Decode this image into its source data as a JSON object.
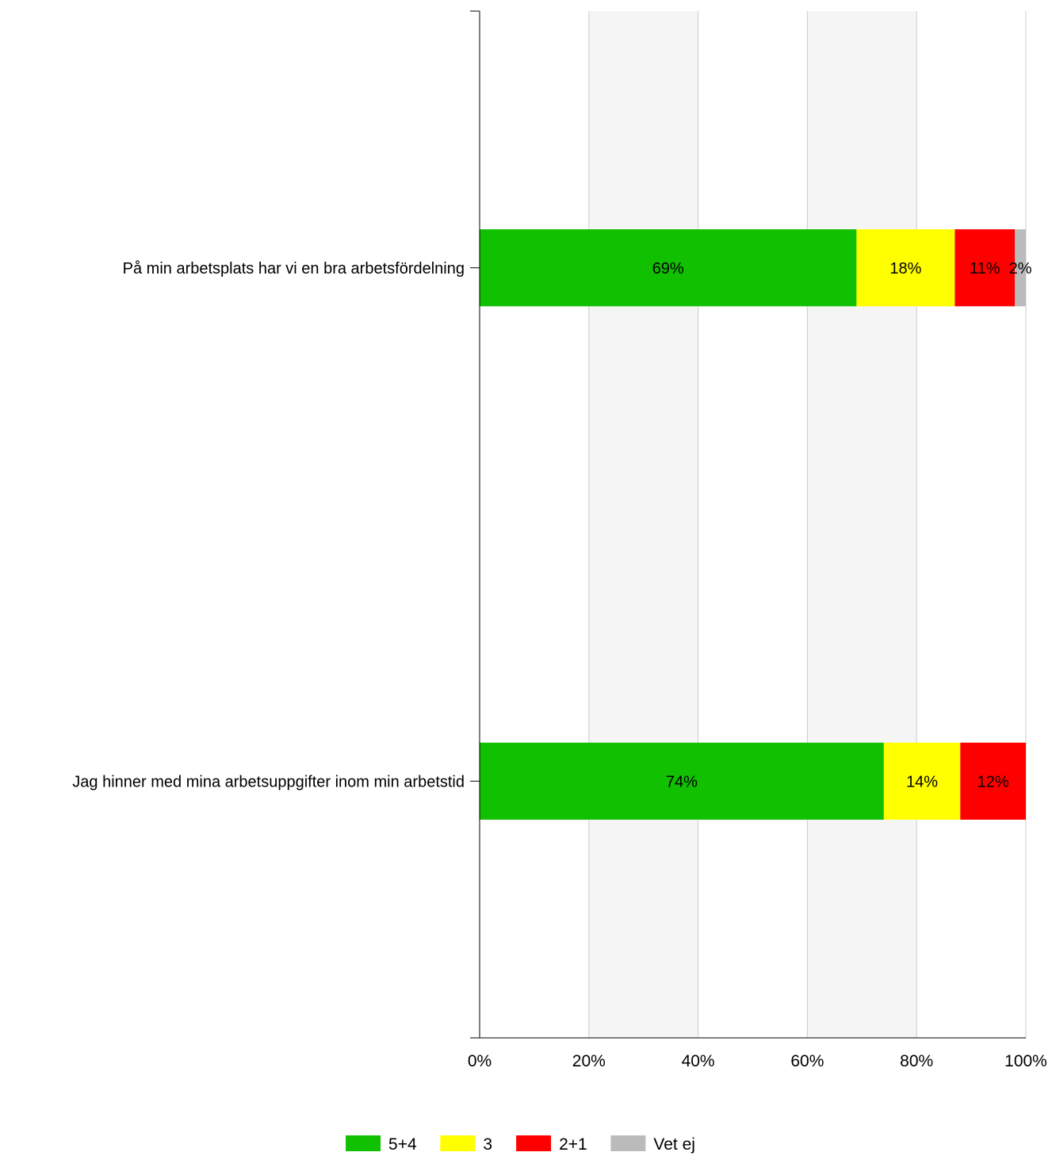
{
  "chart_data": {
    "type": "bar",
    "orientation": "horizontal",
    "stacked": true,
    "categories": [
      "På min arbetsplats har vi en bra arbetsfördelning",
      "Jag hinner med mina arbetsuppgifter inom min arbetstid"
    ],
    "series": [
      {
        "name": "5+4",
        "color": "#11c000",
        "values": [
          69,
          74
        ],
        "labels": [
          "69%",
          "74%"
        ]
      },
      {
        "name": "3",
        "color": "#ffff00",
        "values": [
          18,
          14
        ],
        "labels": [
          "18%",
          "14%"
        ]
      },
      {
        "name": "2+1",
        "color": "#ff0000",
        "values": [
          11,
          12
        ],
        "labels": [
          "11%",
          "12%"
        ]
      },
      {
        "name": "Vet ej",
        "color": "#bbbbbb",
        "values": [
          2,
          0
        ],
        "labels": [
          "2%",
          ""
        ]
      }
    ],
    "xlim": [
      0,
      100
    ],
    "x_ticks": [
      "0%",
      "20%",
      "40%",
      "60%",
      "80%",
      "100%"
    ],
    "grid": true,
    "alternating_bands": true,
    "legend_position": "bottom"
  }
}
